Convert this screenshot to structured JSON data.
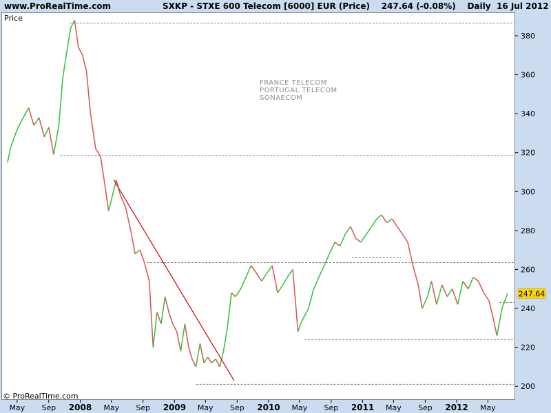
{
  "header": {
    "site": "www.ProRealTime.com",
    "title": "SXKP - STXE 600 Telecom [6000] EUR (Price)",
    "price": "247.64 (-0.08%)",
    "period": "Daily",
    "date": "16 Jul 2012"
  },
  "chart_label": "Price",
  "watermark": "© ProRealTime.com",
  "annotations": [
    "FRANCE TELECOM",
    "PORTUGAL TELECOM",
    "SONAECOM"
  ],
  "colors": {
    "up": "#3cc23c",
    "down": "#d95a5a",
    "trendline": "#cc0000",
    "current_price_bg": "#ffd700"
  },
  "chart_data": {
    "type": "line",
    "title": "SXKP - STXE 600 Telecom [6000] EUR (Price)",
    "ylabel": "Price",
    "ylim": [
      193,
      392
    ],
    "y_ticks": [
      200,
      220,
      240,
      260,
      280,
      300,
      320,
      340,
      360,
      380
    ],
    "x_ticks": [
      {
        "label": "May",
        "date": "2007-05-01",
        "bold": false
      },
      {
        "label": "Sep",
        "date": "2007-09-01",
        "bold": false
      },
      {
        "label": "2008",
        "date": "2008-01-01",
        "bold": true
      },
      {
        "label": "May",
        "date": "2008-05-01",
        "bold": false
      },
      {
        "label": "Sep",
        "date": "2008-09-01",
        "bold": false
      },
      {
        "label": "2009",
        "date": "2009-01-01",
        "bold": true
      },
      {
        "label": "May",
        "date": "2009-05-01",
        "bold": false
      },
      {
        "label": "Sep",
        "date": "2009-09-01",
        "bold": false
      },
      {
        "label": "2010",
        "date": "2010-01-01",
        "bold": true
      },
      {
        "label": "May",
        "date": "2010-05-01",
        "bold": false
      },
      {
        "label": "Sep",
        "date": "2010-09-01",
        "bold": false
      },
      {
        "label": "2011",
        "date": "2011-01-01",
        "bold": true
      },
      {
        "label": "May",
        "date": "2011-05-01",
        "bold": false
      },
      {
        "label": "Sep",
        "date": "2011-09-01",
        "bold": false
      },
      {
        "label": "2012",
        "date": "2012-01-01",
        "bold": true
      },
      {
        "label": "May",
        "date": "2012-05-01",
        "bold": false
      }
    ],
    "series": [
      {
        "x": [
          "2007-03-25",
          "2007-04-05",
          "2007-04-20",
          "2007-05-05",
          "2007-05-25",
          "2007-06-15",
          "2007-07-05",
          "2007-07-25",
          "2007-08-15",
          "2007-09-01",
          "2007-09-20",
          "2007-10-10",
          "2007-10-25",
          "2007-11-10",
          "2007-11-25",
          "2007-12-10",
          "2007-12-25",
          "2008-01-10",
          "2008-01-25",
          "2008-02-10",
          "2008-03-01",
          "2008-03-20",
          "2008-04-05",
          "2008-04-20",
          "2008-05-05",
          "2008-05-20",
          "2008-06-05",
          "2008-06-25",
          "2008-07-15",
          "2008-08-01",
          "2008-08-20",
          "2008-09-05",
          "2008-09-25",
          "2008-10-10",
          "2008-10-25",
          "2008-11-10",
          "2008-11-25",
          "2008-12-10",
          "2008-12-25",
          "2009-01-10",
          "2009-01-25",
          "2009-02-10",
          "2009-02-25",
          "2009-03-10",
          "2009-03-25",
          "2009-04-10",
          "2009-04-25",
          "2009-05-10",
          "2009-05-25",
          "2009-06-10",
          "2009-06-25",
          "2009-07-10",
          "2009-07-25",
          "2009-08-10",
          "2009-08-25",
          "2009-09-15",
          "2009-10-05",
          "2009-10-25",
          "2009-11-15",
          "2009-12-05",
          "2009-12-25",
          "2010-01-15",
          "2010-02-05",
          "2010-02-25",
          "2010-03-15",
          "2010-04-05",
          "2010-04-25",
          "2010-05-05",
          "2010-05-20",
          "2010-06-05",
          "2010-06-25",
          "2010-07-15",
          "2010-08-05",
          "2010-08-25",
          "2010-09-15",
          "2010-10-05",
          "2010-10-25",
          "2010-11-15",
          "2010-12-05",
          "2010-12-25",
          "2011-01-15",
          "2011-02-05",
          "2011-02-25",
          "2011-03-15",
          "2011-04-05",
          "2011-04-25",
          "2011-05-15",
          "2011-06-05",
          "2011-06-25",
          "2011-07-15",
          "2011-08-05",
          "2011-08-20",
          "2011-09-10",
          "2011-09-25",
          "2011-10-15",
          "2011-11-05",
          "2011-11-25",
          "2011-12-15",
          "2012-01-05",
          "2012-01-25",
          "2012-02-15",
          "2012-03-05",
          "2012-03-25",
          "2012-04-15",
          "2012-05-05",
          "2012-05-20",
          "2012-06-05",
          "2012-06-25",
          "2012-07-16"
        ],
        "y": [
          315,
          322,
          328,
          333,
          338,
          343,
          334,
          338,
          328,
          333,
          319,
          334,
          358,
          372,
          384,
          388,
          374,
          370,
          362,
          340,
          322,
          318,
          304,
          290,
          298,
          306,
          298,
          292,
          280,
          268,
          270,
          264,
          254,
          220,
          238,
          232,
          246,
          238,
          232,
          228,
          218,
          232,
          220,
          214,
          210,
          222,
          212,
          215,
          212,
          214,
          210,
          218,
          230,
          248,
          246,
          250,
          256,
          262,
          258,
          254,
          258,
          262,
          248,
          252,
          256,
          260,
          228,
          232,
          236,
          240,
          250,
          256,
          262,
          268,
          274,
          272,
          278,
          282,
          276,
          274,
          278,
          282,
          286,
          288,
          284,
          286,
          282,
          278,
          274,
          262,
          252,
          240,
          246,
          254,
          242,
          252,
          246,
          250,
          242,
          254,
          250,
          256,
          254,
          248,
          244,
          236,
          226,
          240,
          247.64
        ]
      }
    ],
    "trendline": {
      "from": [
        "2008-05-10",
        306
      ],
      "to": [
        "2009-08-20",
        203
      ]
    },
    "levels": [
      {
        "value": 386.5,
        "from": "2007-11-20",
        "to": "2012-08-10"
      },
      {
        "value": 318.5,
        "from": "2007-10-15",
        "to": "2012-08-10"
      },
      {
        "value": 263.5,
        "from": "2008-09-15",
        "to": "2012-08-10"
      },
      {
        "value": 266.0,
        "from": "2010-11-20",
        "to": "2011-05-30"
      },
      {
        "value": 243.0,
        "from": "2012-06-15",
        "to": "2012-08-10"
      },
      {
        "value": 224.0,
        "from": "2010-05-20",
        "to": "2012-08-10"
      },
      {
        "value": 201.0,
        "from": "2009-03-25",
        "to": "2012-08-10"
      }
    ],
    "last_price": "247.64",
    "last_value": 247.64
  }
}
